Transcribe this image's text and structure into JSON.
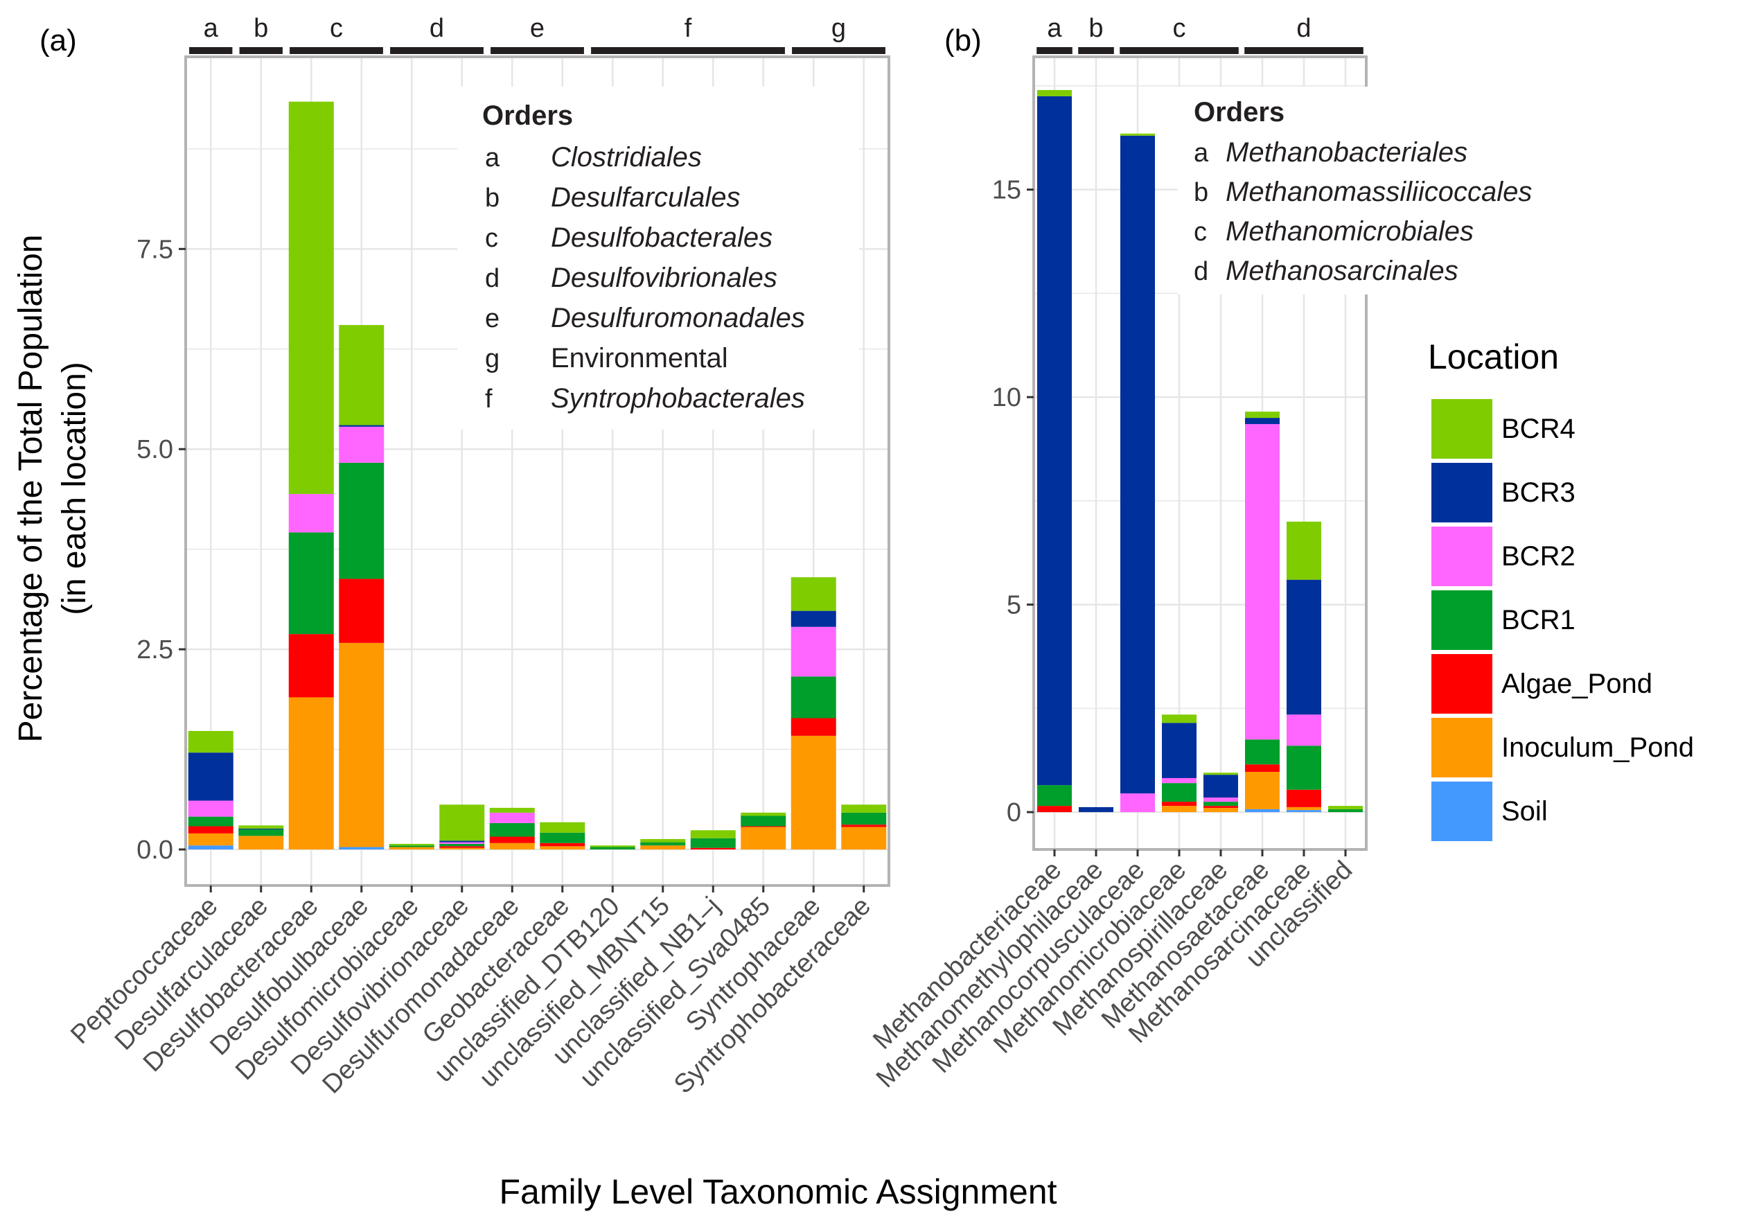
{
  "x_axis_title": "Family Level Taxonomic Assignment",
  "y_axis_title_line1": "Percentage of the Total Population",
  "y_axis_title_line2": "(in each location)",
  "legend": {
    "title": "Location",
    "items": [
      {
        "name": "BCR4",
        "color": "#7fcc00"
      },
      {
        "name": "BCR3",
        "color": "#00309c"
      },
      {
        "name": "BCR2",
        "color": "#ff66ff"
      },
      {
        "name": "BCR1",
        "color": "#009e2a"
      },
      {
        "name": "Algae_Pond",
        "color": "#ff0000"
      },
      {
        "name": "Inoculum_Pond",
        "color": "#ff9900"
      },
      {
        "name": "Soil",
        "color": "#4499ff"
      }
    ]
  },
  "chart_data": [
    {
      "type": "bar",
      "stacked": true,
      "panel_label": "(a)",
      "title": "",
      "xlabel": "Family Level Taxonomic Assignment",
      "ylabel": "Percentage of the Total Population (in each location)",
      "ylim": [
        -0.45,
        9.9
      ],
      "yticks": [
        0.0,
        2.5,
        5.0,
        7.5
      ],
      "ytick_labels": [
        "0.0",
        "2.5",
        "5.0",
        "7.5"
      ],
      "stack_order": [
        "Soil",
        "Inoculum_Pond",
        "Algae_Pond",
        "BCR1",
        "BCR2",
        "BCR3",
        "BCR4"
      ],
      "categories": [
        "Peptococcaceae",
        "Desulfarculaceae",
        "Desulfobacteraceae",
        "Desulfobulbaceae",
        "Desulfomicrobiaceae",
        "Desulfovibrionaceae",
        "Desulfuromonadaceae",
        "Geobacteraceae",
        "unclassified_DTB120",
        "unclassified_MBNT15",
        "unclassified_NB1–j",
        "unclassified_Sva0485",
        "Syntrophaceae",
        "Syntrophobacteraceae"
      ],
      "series": [
        {
          "name": "Soil",
          "values": [
            0.05,
            0.0,
            0.0,
            0.03,
            0.0,
            0.0,
            0.0,
            0.0,
            0.0,
            0.0,
            0.0,
            0.0,
            0.0,
            0.0
          ]
        },
        {
          "name": "Inoculum_Pond",
          "values": [
            0.15,
            0.17,
            1.9,
            2.55,
            0.03,
            0.02,
            0.08,
            0.04,
            0.0,
            0.05,
            0.0,
            0.28,
            1.42,
            0.28
          ]
        },
        {
          "name": "Algae_Pond",
          "values": [
            0.09,
            0.0,
            0.79,
            0.8,
            0.0,
            0.02,
            0.08,
            0.04,
            0.0,
            0.0,
            0.02,
            0.01,
            0.22,
            0.03
          ]
        },
        {
          "name": "BCR1",
          "values": [
            0.12,
            0.08,
            1.27,
            1.45,
            0.02,
            0.03,
            0.17,
            0.13,
            0.03,
            0.04,
            0.12,
            0.13,
            0.52,
            0.15
          ]
        },
        {
          "name": "BCR2",
          "values": [
            0.2,
            0.0,
            0.48,
            0.45,
            0.0,
            0.02,
            0.13,
            0.0,
            0.0,
            0.0,
            0.0,
            0.0,
            0.62,
            0.0
          ]
        },
        {
          "name": "BCR3",
          "values": [
            0.6,
            0.01,
            0.0,
            0.02,
            0.0,
            0.02,
            0.0,
            0.0,
            0.0,
            0.0,
            0.0,
            0.0,
            0.2,
            0.0
          ]
        },
        {
          "name": "BCR4",
          "values": [
            0.27,
            0.04,
            4.9,
            1.25,
            0.02,
            0.45,
            0.06,
            0.13,
            0.02,
            0.04,
            0.1,
            0.04,
            0.42,
            0.1
          ]
        }
      ],
      "order_groups": [
        {
          "code": "a",
          "from": 0,
          "to": 0
        },
        {
          "code": "b",
          "from": 1,
          "to": 1
        },
        {
          "code": "c",
          "from": 2,
          "to": 3
        },
        {
          "code": "d",
          "from": 4,
          "to": 5
        },
        {
          "code": "e",
          "from": 6,
          "to": 7
        },
        {
          "code": "f",
          "from": 8,
          "to": 11
        },
        {
          "code": "g",
          "from": 12,
          "to": 13
        }
      ],
      "orders_box": {
        "title": "Orders",
        "entries": [
          {
            "code": "a",
            "name": "Clostridiales",
            "italic": true
          },
          {
            "code": "b",
            "name": "Desulfarculales",
            "italic": true
          },
          {
            "code": "c",
            "name": "Desulfobacterales",
            "italic": true
          },
          {
            "code": "d",
            "name": "Desulfovibrionales",
            "italic": true
          },
          {
            "code": "e",
            "name": "Desulfuromonadales",
            "italic": true
          },
          {
            "code": "g",
            "name": "Environmental",
            "italic": false
          },
          {
            "code": "f",
            "name": "Syntrophobacterales",
            "italic": true
          }
        ]
      }
    },
    {
      "type": "bar",
      "stacked": true,
      "panel_label": "(b)",
      "title": "",
      "xlabel": "Family Level Taxonomic Assignment",
      "ylabel": "Percentage of the Total Population (in each location)",
      "ylim": [
        -0.9,
        18.2
      ],
      "yticks": [
        0,
        5,
        10,
        15
      ],
      "ytick_labels": [
        "0",
        "5",
        "10",
        "15"
      ],
      "stack_order": [
        "Soil",
        "Inoculum_Pond",
        "Algae_Pond",
        "BCR1",
        "BCR2",
        "BCR3",
        "BCR4"
      ],
      "categories": [
        "Methanobacteriaceae",
        "Methanomethylophilaceae",
        "Methanocorpusculaceae",
        "Methanomicrobiaceae",
        "Methanospirillaceae",
        "Methanosaetaceae",
        "Methanosarcinaceae",
        "unclassified"
      ],
      "series": [
        {
          "name": "Soil",
          "values": [
            0.0,
            0.0,
            0.0,
            0.0,
            0.0,
            0.07,
            0.05,
            0.0
          ]
        },
        {
          "name": "Inoculum_Pond",
          "values": [
            0.0,
            0.0,
            0.0,
            0.15,
            0.1,
            0.9,
            0.07,
            0.0
          ]
        },
        {
          "name": "Algae_Pond",
          "values": [
            0.15,
            0.0,
            0.0,
            0.1,
            0.05,
            0.18,
            0.42,
            0.0
          ]
        },
        {
          "name": "BCR1",
          "values": [
            0.5,
            0.0,
            0.0,
            0.45,
            0.1,
            0.6,
            1.06,
            0.07
          ]
        },
        {
          "name": "BCR2",
          "values": [
            0.0,
            0.0,
            0.45,
            0.12,
            0.1,
            7.6,
            0.75,
            0.0
          ]
        },
        {
          "name": "BCR3",
          "values": [
            16.6,
            0.12,
            15.85,
            1.33,
            0.55,
            0.15,
            3.25,
            0.0
          ]
        },
        {
          "name": "BCR4",
          "values": [
            0.15,
            0.0,
            0.05,
            0.2,
            0.05,
            0.15,
            1.4,
            0.08
          ]
        }
      ],
      "order_groups": [
        {
          "code": "a",
          "from": 0,
          "to": 0
        },
        {
          "code": "b",
          "from": 1,
          "to": 1
        },
        {
          "code": "c",
          "from": 2,
          "to": 4
        },
        {
          "code": "d",
          "from": 5,
          "to": 7
        }
      ],
      "orders_box": {
        "title": "Orders",
        "entries": [
          {
            "code": "a",
            "name": "Methanobacteriales",
            "italic": true
          },
          {
            "code": "b",
            "name": "Methanomassiliicoccales",
            "italic": true
          },
          {
            "code": "c",
            "name": "Methanomicrobiales",
            "italic": true
          },
          {
            "code": "d",
            "name": "Methanosarcinales",
            "italic": true
          }
        ]
      }
    }
  ]
}
